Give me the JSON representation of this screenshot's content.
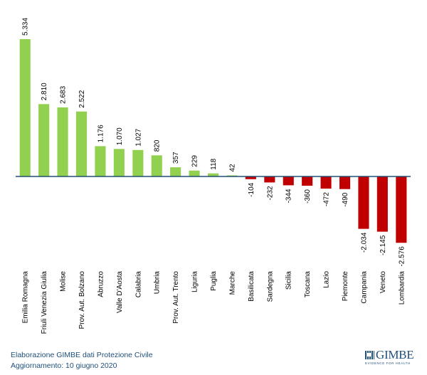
{
  "chart_data": {
    "type": "bar",
    "title": "",
    "xlabel": "",
    "ylabel": "",
    "ylim": [
      -2576,
      5334
    ],
    "grid": false,
    "legend": "none",
    "categories": [
      "Emilia Romagna",
      "Friuli Venezia Giulia",
      "Molise",
      "Prov. Aut. Bolzano",
      "Abruzzo",
      "Valle D'Aosta",
      "Calabria",
      "Umbria",
      "Prov. Aut. Trento",
      "Liguria",
      "Puglia",
      "Marche",
      "Basilicata",
      "Sardegna",
      "Sicilia",
      "Toscana",
      "Lazio",
      "Piemonte",
      "Campania",
      "Veneto",
      "Lombardia"
    ],
    "values": [
      5334,
      2810,
      2683,
      2522,
      1176,
      1070,
      1027,
      820,
      357,
      229,
      118,
      42,
      -104,
      -232,
      -344,
      -360,
      -472,
      -490,
      -2034,
      -2145,
      -2576
    ],
    "data_labels": [
      "5.334",
      "2.810",
      "2.683",
      "2.522",
      "1.176",
      "1.070",
      "1.027",
      "820",
      "357",
      "229",
      "118",
      "42",
      "-104",
      "-232",
      "-344",
      "-360",
      "-472",
      "-490",
      "-2.034",
      "-2.145",
      "-2.576"
    ],
    "colors": {
      "positive": "#92d050",
      "negative": "#c00000",
      "axis": "#1f4e79"
    }
  },
  "footer": {
    "line1": "Elaborazione GIMBE dati Protezione Civile",
    "line2": "Aggiornamento: 10 giugno 2020"
  },
  "logo": {
    "name": "GIMBE",
    "tagline": "EVIDENCE FOR HEALTH"
  }
}
